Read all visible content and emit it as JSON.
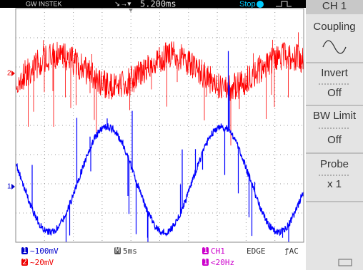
{
  "header": {
    "brand": "GW INSTEK",
    "timebase": "5.200ms",
    "status": "Stop",
    "menu_title": "CH 1"
  },
  "menu": {
    "items": [
      "Coupling",
      "Invert",
      "Off",
      "BW Limit",
      "Off",
      "Probe",
      "x 1"
    ]
  },
  "markers": {
    "ch1": "1",
    "ch2": "2"
  },
  "footer": {
    "ch1_scale": "~100mV",
    "ch2_scale": "~20mV",
    "ch1_badge": "1",
    "ch2_badge": "2",
    "time_badge": "M",
    "time_scale": "5ms",
    "trigger_source": "CH1",
    "trigger_type": "EDGE",
    "trigger_coupling": "ƒAC",
    "frequency": "<20Hz"
  }
}
